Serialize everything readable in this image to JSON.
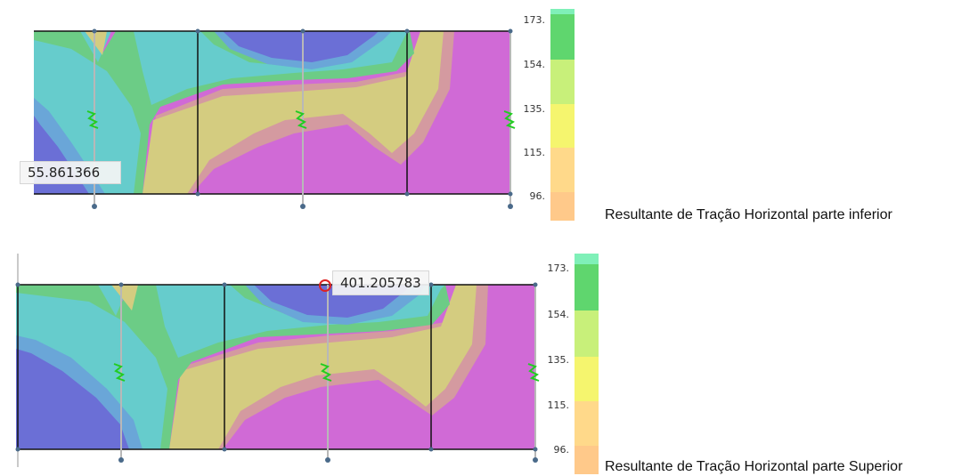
{
  "panels": [
    {
      "caption": "Resultante de Tração Horizontal parte inferior",
      "probe_value": "55.861366",
      "probe_visible": "55.861366"
    },
    {
      "caption": "Resultante de Tração Horizontal parte Superior",
      "probe_value": "401.205783"
    }
  ],
  "colorbar": {
    "labels": [
      "173.",
      "154.",
      "135.",
      "115.",
      "96."
    ],
    "bands": [
      "#7ff0b8",
      "#5fd66e",
      "#8fe05c",
      "#c8f07a",
      "#f5f56e",
      "#ffe77a",
      "#ffd98a",
      "#ffc98a",
      "#ffbf80"
    ]
  },
  "colors": {
    "purple_low": "#6b6fd6",
    "cyan": "#66cccc",
    "green": "#6ccc86",
    "blue_light": "#6aa6d8",
    "khaki": "#d4cc80",
    "pink": "#d49aa0",
    "magenta": "#d06ad6",
    "mesh_black": "#111111",
    "mesh_grey": "#b8b8b8",
    "node": "#4a6a8a",
    "spring": "#22cc22",
    "probe_marker": "#dd2222"
  },
  "icons": [
    "spring-support-icon",
    "probe-marker-icon"
  ]
}
